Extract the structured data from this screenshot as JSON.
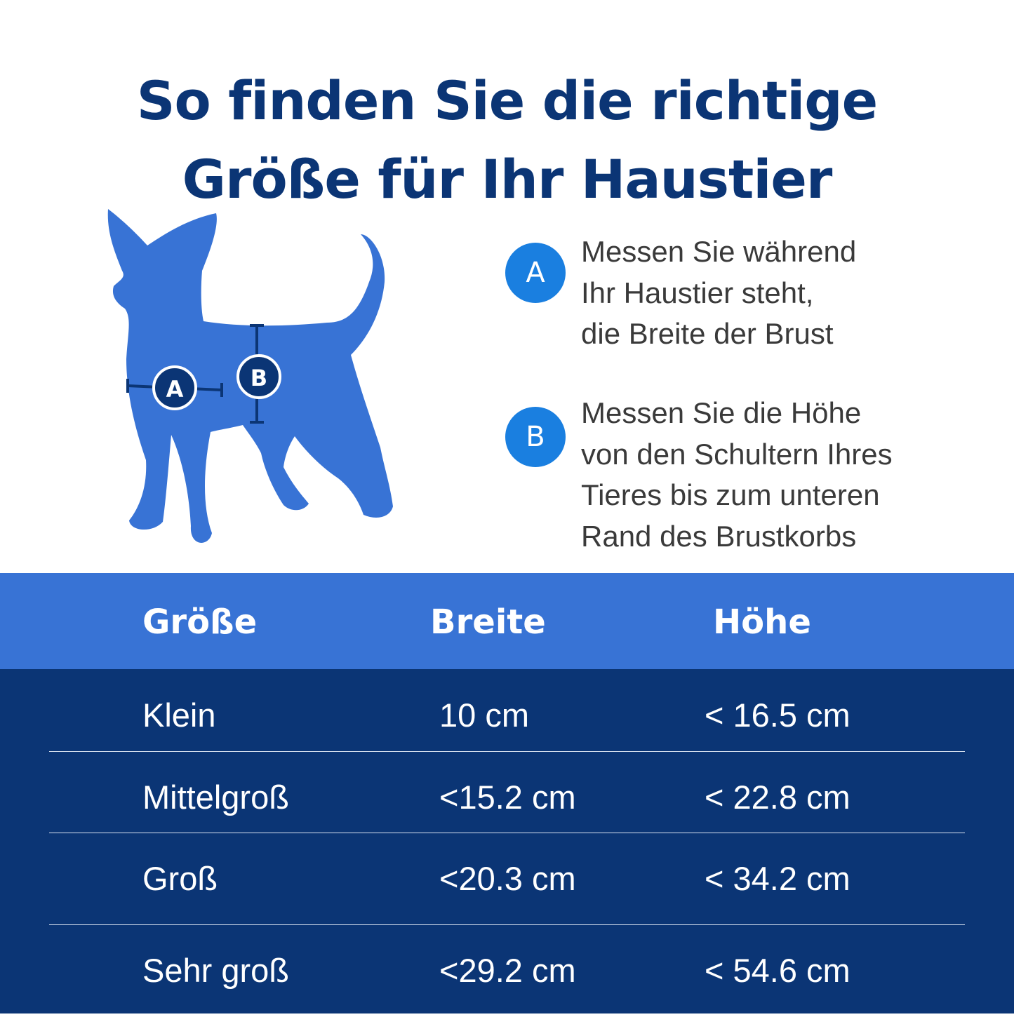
{
  "title": {
    "line1": "So finden Sie die richtige",
    "line2": "Größe für Ihr Haustier"
  },
  "illustration": {
    "marker_a": "A",
    "marker_b": "B",
    "dog_color": "#3873d5"
  },
  "instructions": [
    {
      "badge": "A",
      "lines": [
        "Messen Sie während",
        "Ihr Haustier steht,",
        "die Breite der Brust"
      ]
    },
    {
      "badge": "B",
      "lines": [
        "Messen Sie die Höhe",
        "von den Schultern Ihres",
        "Tieres bis zum unteren",
        "Rand des Brustkorbs"
      ]
    }
  ],
  "table": {
    "headers": [
      "Größe",
      "Breite",
      "Höhe"
    ],
    "rows": [
      [
        "Klein",
        "10 cm",
        "< 16.5 cm"
      ],
      [
        "Mittelgroß",
        "<15.2 cm",
        "< 22.8 cm"
      ],
      [
        "Groß",
        "<20.3 cm",
        "< 34.2 cm"
      ],
      [
        "Sehr groß",
        "<29.2 cm",
        "< 54.6 cm"
      ]
    ]
  },
  "colors": {
    "title": "#0b3575",
    "badge": "#1a7fe0",
    "header_bg": "#3873d5",
    "body_bg": "#0b3575"
  }
}
